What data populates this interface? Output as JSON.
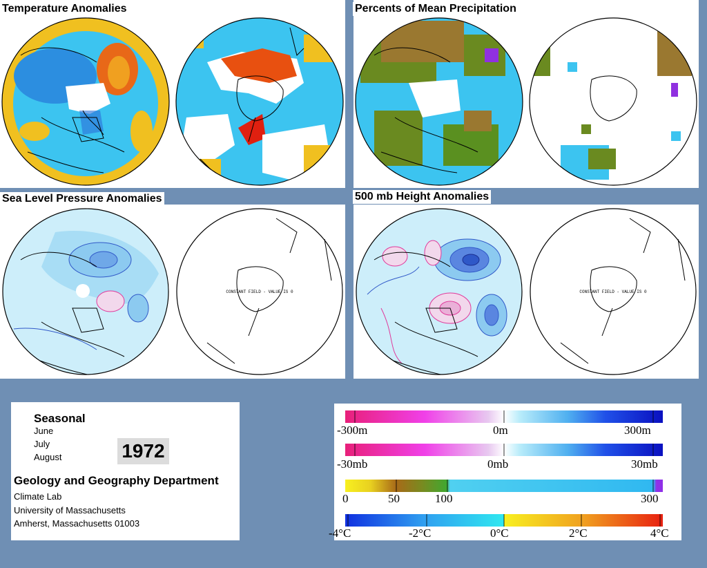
{
  "panels": {
    "temperature_title": "Temperature Anomalies",
    "precip_title": "Percents of Mean Precipitation",
    "slp_title": "Sea Level Pressure Anomalies",
    "height_title": "500 mb Height Anomalies",
    "constant_field_text": "CONSTANT FIELD - VALUE IS 0"
  },
  "info": {
    "period_label": "Seasonal",
    "months": [
      "June",
      "July",
      "August"
    ],
    "year": "1972",
    "department": "Geology and Geography Department",
    "lab": "Climate Lab",
    "university": "University of Massachusetts",
    "address": "Amherst, Massachusetts 01003"
  },
  "legend": {
    "height_scale": {
      "min": "-300m",
      "mid": "0m",
      "max": "300m"
    },
    "pressure_scale": {
      "min": "-30mb",
      "mid": "0mb",
      "max": "30mb"
    },
    "precip_scale": {
      "v0": "0",
      "v50": "50",
      "v100": "100",
      "v300": "300"
    },
    "temp_scale": {
      "v1": "-4°C",
      "v2": "-2°C",
      "v3": "0°C",
      "v4": "2°C",
      "v5": "4°C"
    }
  },
  "colors": {
    "background": "#6f8fb4",
    "cool": "#31c3f0",
    "warm": "#f0c020",
    "hot": "#e85010",
    "low_pressure": "#3058c8",
    "high_pressure": "#e0389a"
  }
}
